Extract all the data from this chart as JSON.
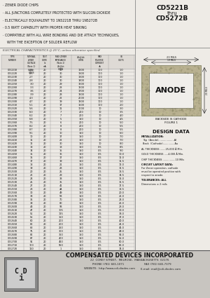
{
  "title_left_lines": [
    "· ZENER DIODE CHIPS",
    "· ALL JUNCTIONS COMPLETELY PROTECTED WITH SILICON DIOXIDE",
    "· ELECTRICALLY EQUIVALENT TO 1N5221B THRU 1N5272B",
    "· 0.5 WATT CAPABILITY WITH PROPER HEAT SINKING",
    "· COMPATIBLE WITH ALL WIRE BONDING AND DIE ATTACH TECHNIQUES,",
    "    WITH THE EXCEPTION OF SOLDER REFLOW"
  ],
  "part_number_top": "CD5221B",
  "part_number_mid": "thru",
  "part_number_bot": "CD5272B",
  "elec_char_label": "ELECTRICAL CHARACTERISTICS @ 25°C, unless otherwise specified",
  "table_rows": [
    [
      "CD5221B",
      "2.4",
      "20",
      "30",
      "1200",
      "100",
      "1.0"
    ],
    [
      "CD5222B",
      "2.5",
      "20",
      "30",
      "1300",
      "100",
      "1.0"
    ],
    [
      "CD5223B",
      "2.7",
      "20",
      "30",
      "1300",
      "100",
      "1.0"
    ],
    [
      "CD5224B",
      "2.8",
      "20",
      "30",
      "1400",
      "100",
      "1.0"
    ],
    [
      "CD5225B",
      "3.0",
      "20",
      "29",
      "1600",
      "100",
      "1.0"
    ],
    [
      "CD5226B",
      "3.3",
      "20",
      "28",
      "1600",
      "100",
      "1.0"
    ],
    [
      "CD5227B",
      "3.6",
      "20",
      "24",
      "1700",
      "100",
      "1.0"
    ],
    [
      "CD5228B",
      "3.9",
      "20",
      "23",
      "1900",
      "100",
      "1.0"
    ],
    [
      "CD5229B",
      "4.3",
      "20",
      "22",
      "2000",
      "100",
      "1.0"
    ],
    [
      "CD5230B",
      "4.7",
      "20",
      "19",
      "1900",
      "100",
      "1.0"
    ],
    [
      "CD5231B",
      "5.1",
      "20",
      "17",
      "1500",
      "100",
      "2.0"
    ],
    [
      "CD5232B",
      "5.6",
      "20",
      "11",
      "1000",
      "10",
      "3.0"
    ],
    [
      "CD5233B",
      "6.0",
      "20",
      "7",
      "200",
      "10",
      "3.5"
    ],
    [
      "CD5234B",
      "6.2",
      "20",
      "7",
      "200",
      "10",
      "4.0"
    ],
    [
      "CD5235B",
      "6.8",
      "20",
      "5",
      "150",
      "10",
      "4.5"
    ],
    [
      "CD5236B",
      "7.5",
      "20",
      "6",
      "200",
      "10",
      "5.0"
    ],
    [
      "CD5237B",
      "8.2",
      "20",
      "8",
      "200",
      "10",
      "5.5"
    ],
    [
      "CD5238B",
      "8.7",
      "20",
      "8",
      "200",
      "10",
      "5.5"
    ],
    [
      "CD5239B",
      "9.1",
      "20",
      "10",
      "150",
      "10",
      "6.0"
    ],
    [
      "CD5240B",
      "10",
      "20",
      "17",
      "150",
      "10",
      "7.0"
    ],
    [
      "CD5241B",
      "11",
      "20",
      "22",
      "150",
      "10",
      "7.0"
    ],
    [
      "CD5242B",
      "12",
      "20",
      "30",
      "150",
      "10",
      "8.0"
    ],
    [
      "CD5243B",
      "13",
      "20",
      "13",
      "150",
      "0.5",
      "8.5"
    ],
    [
      "CD5244B",
      "14",
      "20",
      "15",
      "150",
      "0.5",
      "9.0"
    ],
    [
      "CD5245B",
      "15",
      "20",
      "16",
      "150",
      "0.5",
      "10.0"
    ],
    [
      "CD5246B",
      "16",
      "20",
      "17",
      "150",
      "0.5",
      "11.0"
    ],
    [
      "CD5247B",
      "17",
      "20",
      "19",
      "150",
      "0.5",
      "11.5"
    ],
    [
      "CD5248B",
      "18",
      "20",
      "21",
      "150",
      "0.5",
      "12.0"
    ],
    [
      "CD5249B",
      "19",
      "20",
      "23",
      "150",
      "0.5",
      "12.5"
    ],
    [
      "CD5250B",
      "20",
      "20",
      "25",
      "150",
      "0.5",
      "13.5"
    ],
    [
      "CD5251B",
      "22",
      "20",
      "29",
      "150",
      "0.5",
      "14.5"
    ],
    [
      "CD5252B",
      "24",
      "20",
      "33",
      "150",
      "0.5",
      "16.0"
    ],
    [
      "CD5253B",
      "25",
      "20",
      "35",
      "150",
      "0.5",
      "16.5"
    ],
    [
      "CD5254B",
      "27",
      "20",
      "41",
      "150",
      "0.5",
      "17.5"
    ],
    [
      "CD5255B",
      "28",
      "20",
      "44",
      "150",
      "0.5",
      "18.5"
    ],
    [
      "CD5256B",
      "30",
      "20",
      "49",
      "150",
      "0.5",
      "20.0"
    ],
    [
      "CD5257B",
      "33",
      "20",
      "58",
      "150",
      "0.5",
      "21.0"
    ],
    [
      "CD5258B",
      "36",
      "20",
      "70",
      "150",
      "0.5",
      "24.0"
    ],
    [
      "CD5259B",
      "39",
      "20",
      "80",
      "150",
      "0.5",
      "26.0"
    ],
    [
      "CD5260B",
      "43",
      "20",
      "93",
      "150",
      "0.5",
      "28.0"
    ],
    [
      "CD5261B",
      "47",
      "20",
      "105",
      "150",
      "0.5",
      "30.0"
    ],
    [
      "CD5262B",
      "51",
      "20",
      "125",
      "150",
      "0.5",
      "33.0"
    ],
    [
      "CD5263B",
      "56",
      "20",
      "150",
      "150",
      "0.5",
      "37.0"
    ],
    [
      "CD5264B",
      "60",
      "20",
      "200",
      "150",
      "0.5",
      "40.0"
    ],
    [
      "CD5265B",
      "62",
      "20",
      "200",
      "150",
      "0.5",
      "41.0"
    ],
    [
      "CD5266B",
      "68",
      "20",
      "250",
      "150",
      "0.5",
      "45.0"
    ],
    [
      "CD5267B",
      "75",
      "20",
      "300",
      "150",
      "0.5",
      "49.0"
    ],
    [
      "CD5268B",
      "82",
      "20",
      "350",
      "150",
      "0.5",
      "54.0"
    ],
    [
      "CD5269B",
      "87",
      "20",
      "400",
      "150",
      "0.5",
      "56.0"
    ],
    [
      "CD5270B",
      "91",
      "20",
      "450",
      "150",
      "0.5",
      "60.0"
    ],
    [
      "CD5271B",
      "100",
      "20",
      "550",
      "150",
      "0.5",
      "66.0"
    ],
    [
      "CD5272B",
      "110",
      "20",
      "1",
      "150",
      "0.5",
      "74.0"
    ]
  ],
  "header_row1": [
    "",
    "NOMINAL",
    "TEST",
    "MAXIMUM",
    "",
    "MAXIMUM",
    ""
  ],
  "header_row2": [
    "TYPE",
    "ZENER",
    "TEST",
    "ZENER IMPEDANCE",
    "",
    "REVERSE CURRENT",
    ""
  ],
  "header_row3": [
    "NUMBER",
    "VOLTAGE",
    "CURRENT",
    "(Note 2)",
    "",
    "IR @ VR",
    ""
  ],
  "header_row4": [
    "",
    "(Note 1)",
    "Izt",
    "Zzt @ Izt",
    "Zzk @ Izk",
    "",
    ""
  ],
  "header_row5": [
    "",
    "Vz @ Izt",
    "mA",
    "OHMS",
    "OHMS",
    "uA",
    "VOLTS"
  ],
  "header_row6": [
    "",
    "VOLTS",
    "",
    "",
    "",
    "",
    ""
  ],
  "design_data_title": "DESIGN DATA",
  "design_data_items": [
    "METALLIZATION:",
    "Top  (Anode)....................Al",
    "Back  (Cathode)...............Au",
    "",
    "AL THICKNESS .......25,000 Å Min.",
    "",
    "GOLD THICKNESS .....4,000 Å Min.",
    "",
    "CHIP THICKNESS ................10 Mils",
    "",
    "CIRCUIT LAYOUT DATA:",
    "For Zener operation, cathode",
    "must be operated positive with",
    "respect to anode.",
    "",
    "TOLERANCES: ALL",
    "Dimensions ± 2 mils"
  ],
  "figure_label": "FIGURE 1",
  "backside_label": "BACKSIDE IS CATHODE",
  "anode_label": "ANODE",
  "dim_top": "23 MILS",
  "dim_inner_top": "19 MILS",
  "dim_right": "20 MILS",
  "footer_company": "COMPENSATED DEVICES INCORPORATED",
  "footer_addr": "22  COREY STREET,  MELROSE,  MASSACHUSETTS  02176",
  "footer_phone": "PHONE (781) 665-1071",
  "footer_fax": "FAX (781) 665-7379",
  "footer_web": "WEBSITE:  http://www.cdi-diodes.com",
  "footer_email": "E-mail: mail@cdi-diodes.com",
  "bg_color": "#eeebe6",
  "footer_bg": "#c8c5c0",
  "divider_color": "#888888",
  "table_line_color": "#999999",
  "text_dark": "#111111",
  "text_mid": "#333333"
}
